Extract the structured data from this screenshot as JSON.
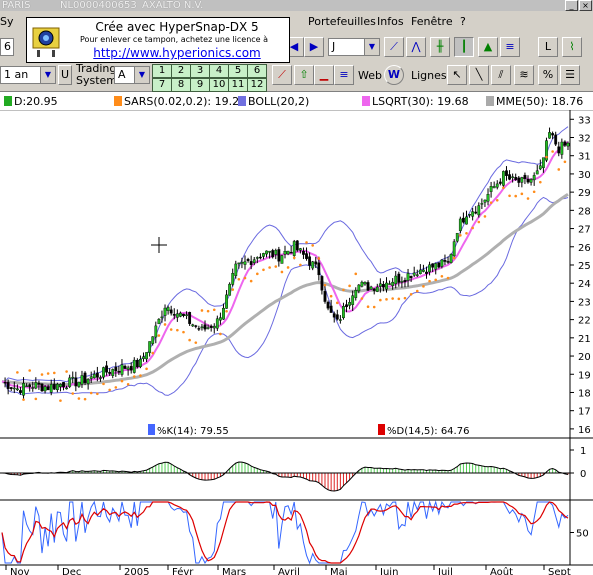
{
  "window": {
    "title_left": "PARIS",
    "title_code": "NL0000400653",
    "title_name": "AXALTO N.V."
  },
  "menu": {
    "items": [
      "Portefeuilles",
      "Infos",
      "Fenêtre",
      "?"
    ],
    "clipped_first": "Sy"
  },
  "stamp": {
    "line1": "Crée avec HyperSnap-DX 5",
    "line2": "Pour enlever ce tampon, achetez une licence à",
    "line3": "http://www.hyperionics.com"
  },
  "toolbar1": {
    "period_value": "J",
    "left_value": "6"
  },
  "toolbar2": {
    "range_value": "1 an",
    "trading_system_label_1": "Trading",
    "trading_system_label_2": "System",
    "ts_value": "A",
    "numbers_row1": [
      "1",
      "2",
      "3",
      "4",
      "5",
      "6"
    ],
    "numbers_row2": [
      "7",
      "8",
      "9",
      "10",
      "11",
      "12"
    ],
    "web_label": "Web",
    "lignes_label": "Lignes"
  },
  "legend": {
    "items": [
      {
        "text": "D:20.95",
        "color": "#22aa22"
      },
      {
        "text": "SARS(0.02,0.2): 19.23",
        "color": "#ff8c1a"
      },
      {
        "text": "BOLL(20,2)",
        "color": "#7070e0"
      },
      {
        "text": "LSQRT(30): 19.68",
        "color": "#ee66ee"
      },
      {
        "text": "MME(50): 18.76",
        "color": "#aaaaaa"
      }
    ]
  },
  "stoch_legend": {
    "k": {
      "text": "%K(14): 79.55",
      "color": "#4466ff"
    },
    "d": {
      "text": "%D(14,5): 64.76",
      "color": "#dd0000"
    }
  },
  "chart_data": {
    "type": "candlestick",
    "y_ticks": [
      16,
      17,
      18,
      19,
      20,
      21,
      22,
      23,
      24,
      25,
      26,
      27,
      28,
      29,
      30,
      31,
      32,
      33
    ],
    "ylim": [
      15.5,
      33.4
    ],
    "x_months": [
      "Nov",
      "Dec",
      "2005",
      "Févr",
      "Mars",
      "Avril",
      "Mai",
      "Juin",
      "Juil",
      "Août",
      "Sept"
    ],
    "close_path": [
      [
        0,
        18.6
      ],
      [
        5,
        18.2
      ],
      [
        10,
        18.4
      ],
      [
        15,
        18.3
      ],
      [
        20,
        18.5
      ],
      [
        25,
        18.6
      ],
      [
        30,
        18.9
      ],
      [
        35,
        19.2
      ],
      [
        40,
        19.4
      ],
      [
        45,
        19.6
      ],
      [
        50,
        21.5
      ],
      [
        53,
        22.8
      ],
      [
        56,
        22.5
      ],
      [
        60,
        22.0
      ],
      [
        65,
        21.4
      ],
      [
        70,
        21.9
      ],
      [
        73,
        23.2
      ],
      [
        76,
        24.8
      ],
      [
        80,
        25.2
      ],
      [
        85,
        25.7
      ],
      [
        90,
        25.5
      ],
      [
        95,
        26.0
      ],
      [
        100,
        25.2
      ],
      [
        103,
        24.6
      ],
      [
        106,
        22.5
      ],
      [
        109,
        21.8
      ],
      [
        112,
        22.9
      ],
      [
        115,
        23.9
      ],
      [
        120,
        23.8
      ],
      [
        125,
        24.1
      ],
      [
        130,
        24.3
      ],
      [
        135,
        24.7
      ],
      [
        140,
        24.9
      ],
      [
        145,
        25.1
      ],
      [
        148,
        27.0
      ],
      [
        151,
        27.9
      ],
      [
        155,
        28.2
      ],
      [
        160,
        29.3
      ],
      [
        163,
        29.9
      ],
      [
        166,
        29.6
      ],
      [
        170,
        29.5
      ],
      [
        173,
        29.8
      ],
      [
        175,
        30.2
      ],
      [
        178,
        32.2
      ],
      [
        181,
        31.4
      ],
      [
        184,
        31.6
      ]
    ],
    "indicators": {
      "mme_end": 18.76,
      "sars_end": 19.23,
      "lsqrt_end": 19.68,
      "stochastic_k_end": 79.55,
      "stochastic_d_end": 64.76
    },
    "panel2_ticks": [
      "1",
      "0"
    ],
    "panel3_ticks": [
      "50"
    ]
  }
}
